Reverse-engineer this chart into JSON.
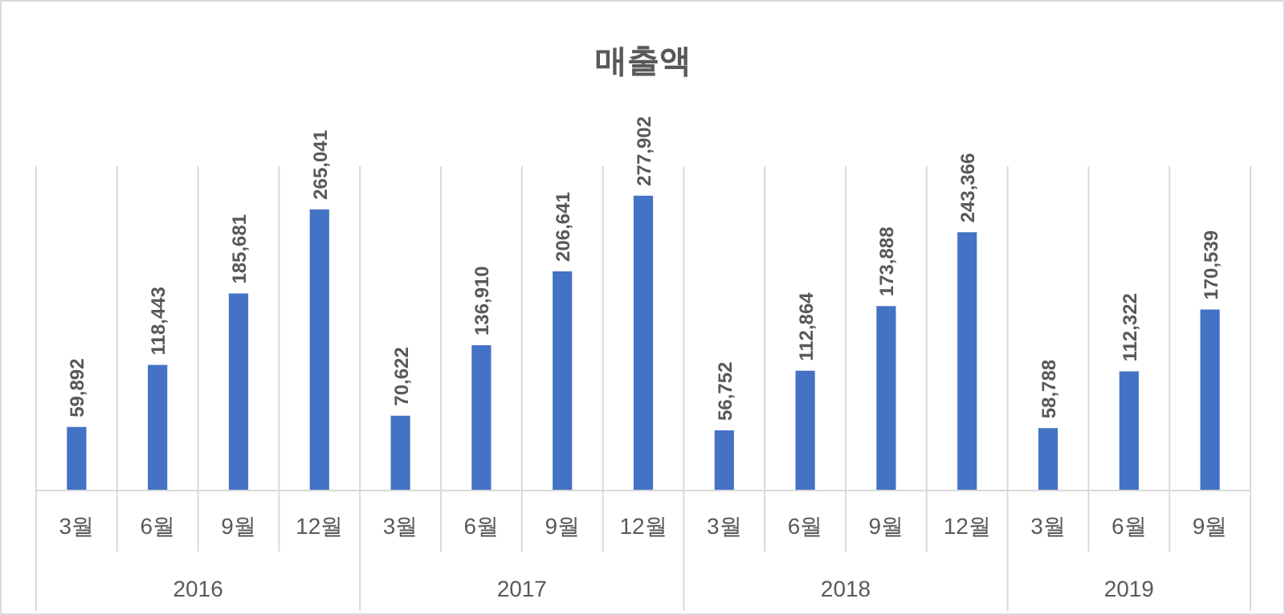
{
  "chart_data": {
    "type": "bar",
    "title": "매출액",
    "categories": [
      "3월",
      "6월",
      "9월",
      "12월",
      "3월",
      "6월",
      "9월",
      "12월",
      "3월",
      "6월",
      "9월",
      "12월",
      "3월",
      "6월",
      "9월"
    ],
    "values": [
      59892,
      118443,
      185681,
      265041,
      70622,
      136910,
      206641,
      277902,
      56752,
      112864,
      173888,
      243366,
      58788,
      112322,
      170539
    ],
    "color": "#4472c4",
    "grid": "x",
    "value_labels": [
      "59,892",
      "118,443",
      "185,681",
      "265,041",
      "70,622",
      "136,910",
      "206,641",
      "277,902",
      "56,752",
      "112,864",
      "173,888",
      "243,366",
      "58,788",
      "112,322",
      "170,539"
    ],
    "annotations": [
      "2016",
      "2017",
      "2018",
      "2019"
    ]
  }
}
